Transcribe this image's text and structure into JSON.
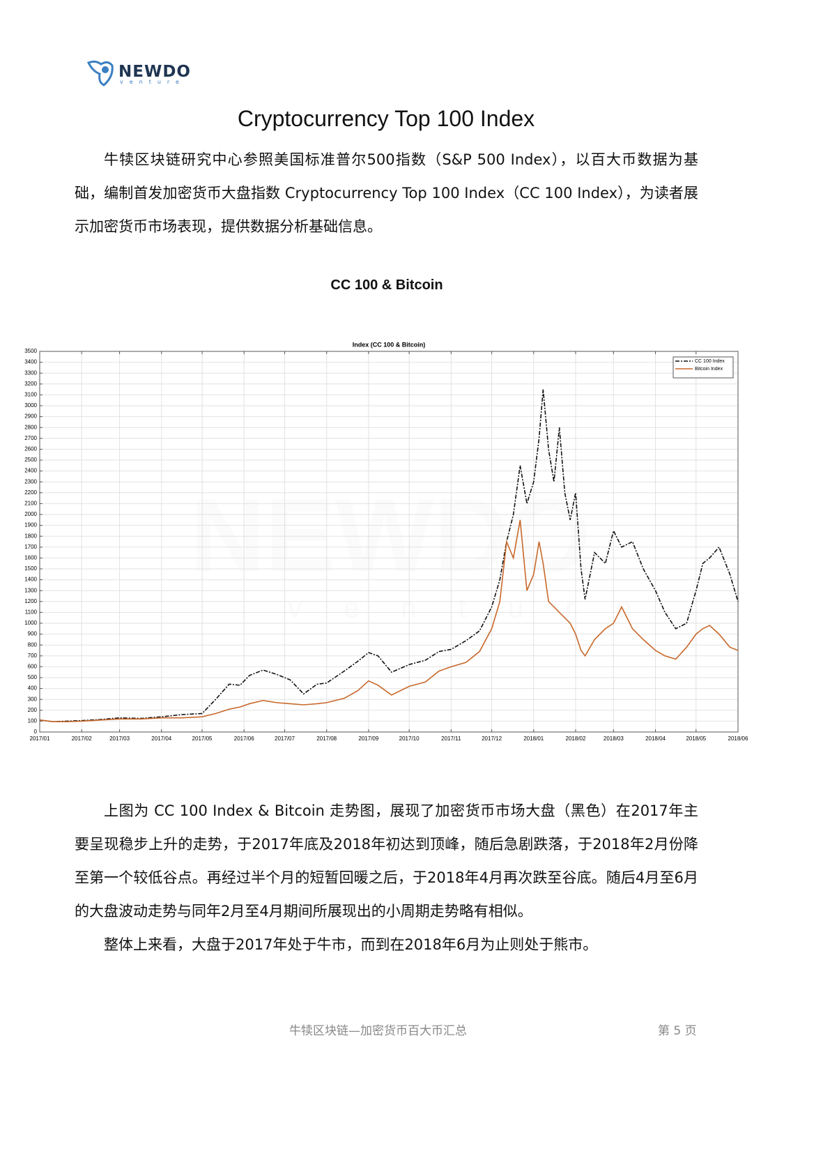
{
  "header": {
    "logo": "NEWDO",
    "logo_sub": "venture"
  },
  "title": "Cryptocurrency Top 100 Index",
  "intro": "牛犊区块链研究中心参照美国标准普尔500指数（S&P 500 Index），以百大币数据为基础，编制首发加密货币大盘指数 Cryptocurrency Top 100 Index（CC 100 Index），为读者展示加密货币市场表现，提供数据分析基础信息。",
  "chart_heading": "CC 100 & Bitcoin",
  "chart_data": {
    "type": "line",
    "title": "Index (CC 100 & Bitcoin)",
    "x": [
      0,
      10,
      20,
      31,
      45,
      59,
      75,
      90,
      105,
      120,
      130,
      140,
      148,
      155,
      165,
      175,
      185,
      195,
      205,
      212,
      225,
      235,
      243,
      250,
      260,
      273,
      285,
      295,
      304,
      315,
      325,
      334,
      340,
      345,
      350,
      355,
      360,
      365,
      369,
      372,
      376,
      380,
      384,
      388,
      392,
      396,
      400,
      403,
      410,
      418,
      424,
      430,
      438,
      446,
      455,
      462,
      470,
      478,
      485,
      490,
      495,
      502,
      510,
      516
    ],
    "series": [
      {
        "name": "CC 100 Index",
        "color": "#111111",
        "dash": true,
        "values": [
          110,
          95,
          100,
          105,
          115,
          130,
          125,
          140,
          160,
          170,
          300,
          440,
          430,
          520,
          570,
          530,
          480,
          350,
          440,
          450,
          560,
          650,
          730,
          700,
          550,
          620,
          660,
          740,
          760,
          840,
          930,
          1150,
          1400,
          1750,
          2000,
          2450,
          2100,
          2300,
          2700,
          3150,
          2600,
          2300,
          2800,
          2200,
          1950,
          2200,
          1500,
          1220,
          1650,
          1550,
          1850,
          1700,
          1750,
          1500,
          1300,
          1100,
          950,
          1000,
          1300,
          1550,
          1600,
          1700,
          1450,
          1200
        ]
      },
      {
        "name": "Bitcoin Index",
        "color": "#c8682a",
        "dash": false,
        "values": [
          110,
          95,
          95,
          100,
          110,
          120,
          120,
          130,
          130,
          140,
          170,
          210,
          230,
          260,
          290,
          270,
          260,
          250,
          260,
          270,
          310,
          380,
          470,
          430,
          340,
          420,
          460,
          560,
          600,
          640,
          740,
          950,
          1200,
          1750,
          1600,
          1950,
          1300,
          1450,
          1750,
          1550,
          1200,
          1150,
          1100,
          1050,
          1000,
          900,
          750,
          700,
          850,
          950,
          1000,
          1150,
          950,
          850,
          750,
          700,
          670,
          780,
          900,
          950,
          980,
          900,
          780,
          750
        ]
      }
    ],
    "xlim": [
      0,
      516
    ],
    "xticks": [
      {
        "value": 0,
        "label": "2017/01"
      },
      {
        "value": 31,
        "label": "2017/02"
      },
      {
        "value": 59,
        "label": "2017/03"
      },
      {
        "value": 90,
        "label": "2017/04"
      },
      {
        "value": 120,
        "label": "2017/05"
      },
      {
        "value": 151,
        "label": "2017/06"
      },
      {
        "value": 181,
        "label": "2017/07"
      },
      {
        "value": 212,
        "label": "2017/08"
      },
      {
        "value": 243,
        "label": "2017/09"
      },
      {
        "value": 273,
        "label": "2017/10"
      },
      {
        "value": 304,
        "label": "2017/11"
      },
      {
        "value": 334,
        "label": "2017/12"
      },
      {
        "value": 365,
        "label": "2018/01"
      },
      {
        "value": 396,
        "label": "2018/02"
      },
      {
        "value": 424,
        "label": "2018/03"
      },
      {
        "value": 455,
        "label": "2018/04"
      },
      {
        "value": 485,
        "label": "2018/05"
      },
      {
        "value": 516,
        "label": "2018/06"
      }
    ],
    "ylim": [
      0,
      3500
    ],
    "yticks": [
      0,
      100,
      200,
      300,
      400,
      500,
      600,
      700,
      800,
      900,
      1000,
      1100,
      1200,
      1300,
      1400,
      1500,
      1600,
      1700,
      1800,
      1900,
      2000,
      2100,
      2200,
      2300,
      2400,
      2500,
      2600,
      2700,
      2800,
      2900,
      3000,
      3100,
      3200,
      3300,
      3400,
      3500
    ],
    "grid": true,
    "legend": "top-right"
  },
  "body": [
    "上图为 CC 100 Index & Bitcoin 走势图，展现了加密货币市场大盘（黑色）在2017年主要呈现稳步上升的走势，于2017年底及2018年初达到顶峰，随后急剧跌落，于2018年2月份降至第一个较低谷点。再经过半个月的短暂回暖之后，于2018年4月再次跌至谷底。随后4月至6月的大盘波动走势与同年2月至4月期间所展现出的小周期走势略有相似。",
    "整体上来看，大盘于2017年处于牛市，而到在2018年6月为止则处于熊市。"
  ],
  "footer": {
    "left": "牛犊区块链—加密货币百大币汇总",
    "right": "第 5 页"
  }
}
